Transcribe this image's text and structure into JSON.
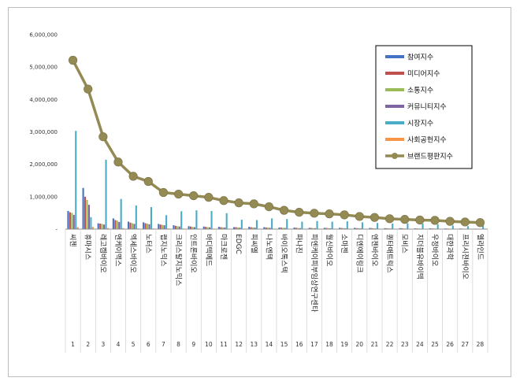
{
  "chart_data": {
    "type": "bar",
    "title": "",
    "xlabel": "",
    "ylabel": "",
    "ylim": [
      0,
      6000000
    ],
    "yticks": [
      "-",
      "1,000,000",
      "2,000,000",
      "3,000,000",
      "4,000,000",
      "5,000,000",
      "6,000,000"
    ],
    "grid": false,
    "legend_position": "top-right",
    "categories": [
      "씨젠",
      "휴마시스",
      "레고켐바이오",
      "엔케이맥스",
      "엑세스바이오",
      "노터스",
      "랩지노믹스",
      "크리스탈지노믹스",
      "인트론바이오",
      "바디텍메드",
      "마크로젠",
      "EDGC",
      "피씨엘",
      "나노엔텍",
      "바이오톡스텍",
      "파나진",
      "피엔케이피부임상연구센타",
      "월신바이오",
      "소마젠",
      "디엔에이링크",
      "엔젠바이오",
      "퀀타매트릭스",
      "모비스",
      "지더블유바이텍",
      "우정바이오",
      "대한과학",
      "프리시젼바이오",
      "엘라인드"
    ],
    "category_index": [
      "1",
      "2",
      "3",
      "4",
      "5",
      "6",
      "7",
      "8",
      "9",
      "10",
      "11",
      "12",
      "13",
      "14",
      "15",
      "16",
      "17",
      "18",
      "19",
      "20",
      "21",
      "22",
      "23",
      "24",
      "25",
      "26",
      "27",
      "28"
    ],
    "series": [
      {
        "name": "참여지수",
        "color": "#4472C4",
        "values": [
          560000,
          1270000,
          180000,
          330000,
          230000,
          210000,
          160000,
          120000,
          90000,
          80000,
          70000,
          60000,
          70000,
          60000,
          50000,
          50000,
          40000,
          40000,
          40000,
          40000,
          35000,
          30000,
          30000,
          25000,
          25000,
          20000,
          20000,
          15000
        ]
      },
      {
        "name": "미디어지수",
        "color": "#C0504D",
        "values": [
          520000,
          1000000,
          170000,
          280000,
          200000,
          180000,
          140000,
          100000,
          80000,
          70000,
          60000,
          60000,
          60000,
          50000,
          45000,
          40000,
          35000,
          35000,
          35000,
          30000,
          30000,
          25000,
          25000,
          20000,
          20000,
          18000,
          15000,
          12000
        ]
      },
      {
        "name": "소통지수",
        "color": "#9BBB59",
        "values": [
          500000,
          900000,
          160000,
          260000,
          180000,
          170000,
          130000,
          90000,
          70000,
          60000,
          55000,
          50000,
          50000,
          45000,
          40000,
          35000,
          30000,
          30000,
          30000,
          28000,
          25000,
          22000,
          20000,
          18000,
          18000,
          15000,
          12000,
          10000
        ]
      },
      {
        "name": "커뮤니티지수",
        "color": "#8064A2",
        "values": [
          440000,
          750000,
          140000,
          220000,
          160000,
          150000,
          120000,
          80000,
          60000,
          55000,
          50000,
          45000,
          45000,
          40000,
          35000,
          30000,
          28000,
          25000,
          25000,
          22000,
          20000,
          18000,
          16000,
          15000,
          15000,
          12000,
          10000,
          8000
        ]
      },
      {
        "name": "시장지수",
        "color": "#4BACC6",
        "values": [
          3030000,
          370000,
          2140000,
          930000,
          730000,
          680000,
          430000,
          550000,
          580000,
          560000,
          490000,
          290000,
          280000,
          330000,
          310000,
          230000,
          250000,
          230000,
          240000,
          210000,
          190000,
          170000,
          180000,
          170000,
          150000,
          110000,
          90000,
          110000
        ]
      },
      {
        "name": "사회공헌지수",
        "color": "#F79646",
        "values": [
          60000,
          70000,
          30000,
          30000,
          20000,
          20000,
          20000,
          15000,
          15000,
          10000,
          10000,
          10000,
          10000,
          10000,
          8000,
          8000,
          6000,
          6000,
          6000,
          5000,
          5000,
          5000,
          4000,
          4000,
          4000,
          3000,
          3000,
          3000
        ]
      },
      {
        "name": "브랜드평판지수",
        "color": "#948A54",
        "kind": "line",
        "values": [
          5210000,
          4320000,
          2850000,
          2070000,
          1630000,
          1470000,
          1130000,
          1080000,
          1030000,
          980000,
          880000,
          810000,
          780000,
          690000,
          580000,
          520000,
          490000,
          470000,
          440000,
          390000,
          360000,
          320000,
          300000,
          280000,
          270000,
          240000,
          220000,
          200000
        ]
      }
    ]
  }
}
